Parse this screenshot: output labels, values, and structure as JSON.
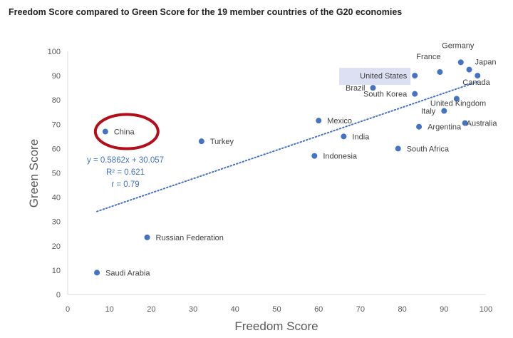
{
  "chart_data": {
    "type": "scatter",
    "title": "Freedom Score compared to Green Score for the 19 member countries of the G20 economies",
    "xlabel": "Freedom Score",
    "ylabel": "Green Score",
    "xlim": [
      0,
      100
    ],
    "ylim": [
      0,
      100
    ],
    "xticks": [
      0,
      10,
      20,
      30,
      40,
      50,
      60,
      70,
      80,
      90,
      100
    ],
    "yticks": [
      0,
      10,
      20,
      30,
      40,
      50,
      60,
      70,
      80,
      90,
      100
    ],
    "grid": false,
    "legend": "none",
    "marker_color": "#4472c4",
    "trendline": {
      "style": "dotted",
      "slope": 0.5862,
      "intercept": 30.057,
      "x_range": [
        7,
        98
      ],
      "equation": "y = 0.5862x + 30.057",
      "r_squared": "R² = 0.621",
      "r": "r = 0.79"
    },
    "points": [
      {
        "label": "China",
        "x": 9,
        "y": 67,
        "highlight": "circle"
      },
      {
        "label": "Turkey",
        "x": 32,
        "y": 63
      },
      {
        "label": "Mexico",
        "x": 60,
        "y": 71.5
      },
      {
        "label": "India",
        "x": 66,
        "y": 65
      },
      {
        "label": "Indonesia",
        "x": 59,
        "y": 57
      },
      {
        "label": "Russian Federation",
        "x": 19,
        "y": 23.5
      },
      {
        "label": "Saudi Arabia",
        "x": 7,
        "y": 9
      },
      {
        "label": "Brazil",
        "x": 73,
        "y": 85
      },
      {
        "label": "South Korea",
        "x": 83,
        "y": 82.5
      },
      {
        "label": "United States",
        "x": 83,
        "y": 90,
        "highlight": "box"
      },
      {
        "label": "France",
        "x": 89,
        "y": 91.5
      },
      {
        "label": "Germany",
        "x": 94,
        "y": 95.5
      },
      {
        "label": "Japan",
        "x": 96,
        "y": 92.5
      },
      {
        "label": "Canada",
        "x": 98,
        "y": 90
      },
      {
        "label": "United Kingdom",
        "x": 93,
        "y": 80.5
      },
      {
        "label": "Italy",
        "x": 90,
        "y": 75.5
      },
      {
        "label": "Argentina",
        "x": 84,
        "y": 69
      },
      {
        "label": "Australia",
        "x": 95,
        "y": 70.5
      },
      {
        "label": "South Africa",
        "x": 79,
        "y": 60
      }
    ]
  }
}
